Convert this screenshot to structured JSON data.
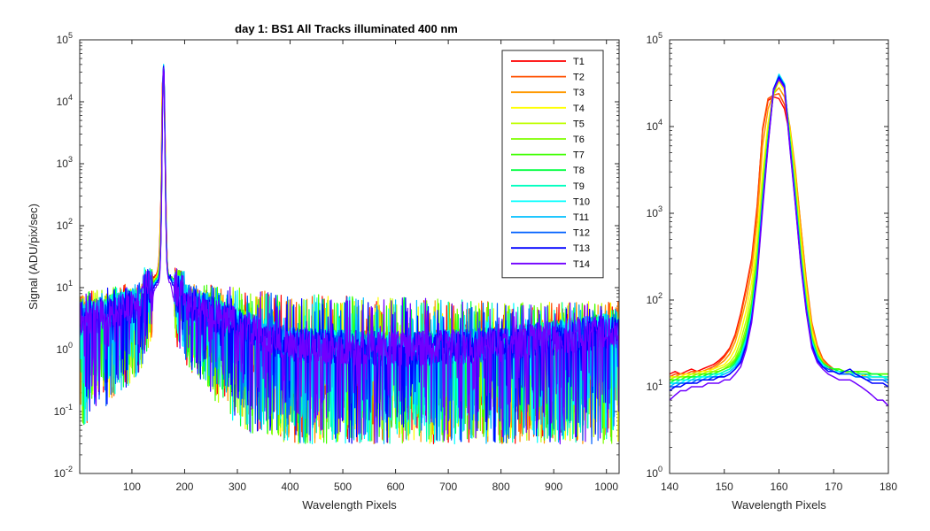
{
  "figure": {
    "title": "day 1: BS1   All Tracks illuminated   400 nm"
  },
  "chart_data": [
    {
      "type": "line",
      "title": "day 1: BS1   All Tracks illuminated   400 nm",
      "xlabel": "Wavelength Pixels",
      "ylabel": "Signal (ADU/pix/sec)",
      "xlim": [
        1,
        1024
      ],
      "ylim": [
        0.01,
        100000
      ],
      "yscale": "log",
      "x_ticks": [
        "100",
        "200",
        "300",
        "400",
        "500",
        "600",
        "700",
        "800",
        "900",
        "1000"
      ],
      "x_tick_values": [
        100,
        200,
        300,
        400,
        500,
        600,
        700,
        800,
        900,
        1000
      ],
      "y_ticks": [
        {
          "base": "10",
          "exp": "-2",
          "value": 0.01
        },
        {
          "base": "10",
          "exp": "-1",
          "value": 0.1
        },
        {
          "base": "10",
          "exp": "0",
          "value": 1
        },
        {
          "base": "10",
          "exp": "1",
          "value": 10
        },
        {
          "base": "10",
          "exp": "2",
          "value": 100
        },
        {
          "base": "10",
          "exp": "3",
          "value": 1000
        },
        {
          "base": "10",
          "exp": "4",
          "value": 10000
        },
        {
          "base": "10",
          "exp": "5",
          "value": 100000
        }
      ],
      "grid": false,
      "legend_position": "top-right",
      "peak": {
        "x": 160,
        "y_max_range": [
          22000,
          40000
        ]
      },
      "noise_profile": [
        {
          "x": 1,
          "median": 3.0,
          "min": 0.05,
          "max": 8
        },
        {
          "x": 100,
          "median": 5.0,
          "min": 0.3,
          "max": 12
        },
        {
          "x": 150,
          "median": 7.0,
          "min": 1.0,
          "max": 15
        },
        {
          "x": 200,
          "median": 6.0,
          "min": 0.6,
          "max": 12
        },
        {
          "x": 300,
          "median": 2.5,
          "min": 0.05,
          "max": 10
        },
        {
          "x": 400,
          "median": 1.2,
          "min": 0.03,
          "max": 8
        },
        {
          "x": 600,
          "median": 1.0,
          "min": 0.03,
          "max": 7
        },
        {
          "x": 800,
          "median": 1.2,
          "min": 0.03,
          "max": 6
        },
        {
          "x": 1000,
          "median": 2.0,
          "min": 0.03,
          "max": 6
        }
      ]
    },
    {
      "type": "line",
      "title": "",
      "xlabel": "Wavelength Pixels",
      "ylabel": "",
      "xlim": [
        140,
        180
      ],
      "ylim": [
        1,
        100000
      ],
      "yscale": "log",
      "x_ticks": [
        "140",
        "150",
        "160",
        "170",
        "180"
      ],
      "x_tick_values": [
        140,
        150,
        160,
        170,
        180
      ],
      "y_ticks": [
        {
          "base": "10",
          "exp": "0",
          "value": 1
        },
        {
          "base": "10",
          "exp": "1",
          "value": 10
        },
        {
          "base": "10",
          "exp": "2",
          "value": 100
        },
        {
          "base": "10",
          "exp": "3",
          "value": 1000
        },
        {
          "base": "10",
          "exp": "4",
          "value": 10000
        },
        {
          "base": "10",
          "exp": "5",
          "value": 100000
        }
      ],
      "grid": false,
      "x": [
        140,
        141,
        142,
        143,
        144,
        145,
        146,
        147,
        148,
        149,
        150,
        151,
        152,
        153,
        154,
        155,
        156,
        157,
        158,
        159,
        160,
        161,
        162,
        163,
        164,
        165,
        166,
        167,
        168,
        169,
        170,
        171,
        172,
        173,
        174,
        175,
        176,
        177,
        178,
        179,
        180
      ],
      "series": [
        {
          "name": "T1",
          "color": "#ff0000",
          "values": [
            14,
            15,
            14,
            15,
            16,
            15,
            16,
            17,
            18,
            20,
            23,
            28,
            40,
            70,
            140,
            300,
            1200,
            9000,
            20000,
            22000,
            21000,
            16000,
            8000,
            2500,
            600,
            150,
            50,
            28,
            20,
            17,
            15,
            15,
            14,
            14,
            14,
            13,
            14,
            13,
            13,
            13,
            12
          ]
        },
        {
          "name": "T2",
          "color": "#ff5000",
          "values": [
            13,
            14,
            14,
            14,
            15,
            15,
            15,
            16,
            17,
            19,
            22,
            27,
            38,
            65,
            130,
            280,
            1100,
            9500,
            21000,
            23000,
            24000,
            18000,
            9000,
            3000,
            700,
            170,
            55,
            30,
            21,
            18,
            16,
            15,
            15,
            14,
            14,
            14,
            14,
            13,
            13,
            13,
            12
          ]
        },
        {
          "name": "T3",
          "color": "#ff9900",
          "values": [
            13,
            13,
            14,
            14,
            14,
            15,
            15,
            16,
            16,
            18,
            20,
            24,
            33,
            55,
            100,
            220,
            800,
            6000,
            16000,
            24000,
            28000,
            22000,
            10000,
            3200,
            700,
            160,
            52,
            28,
            20,
            17,
            16,
            15,
            15,
            14,
            14,
            14,
            13,
            13,
            13,
            13,
            12
          ]
        },
        {
          "name": "T4",
          "color": "#ffff00",
          "values": [
            13,
            13,
            13,
            14,
            14,
            14,
            15,
            15,
            16,
            17,
            18,
            21,
            27,
            42,
            75,
            160,
            520,
            3000,
            11000,
            24000,
            33000,
            26000,
            9000,
            2500,
            500,
            130,
            45,
            26,
            19,
            17,
            16,
            15,
            15,
            14,
            14,
            14,
            13,
            13,
            13,
            13,
            13
          ]
        },
        {
          "name": "T5",
          "color": "#bfff00",
          "values": [
            12,
            13,
            13,
            13,
            14,
            14,
            14,
            15,
            15,
            16,
            17,
            19,
            23,
            34,
            58,
            120,
            380,
            2200,
            9000,
            23000,
            36000,
            28000,
            8000,
            2000,
            400,
            110,
            40,
            25,
            19,
            17,
            16,
            16,
            15,
            15,
            15,
            14,
            14,
            14,
            14,
            14,
            14
          ]
        },
        {
          "name": "T6",
          "color": "#7fff00",
          "values": [
            12,
            12,
            13,
            13,
            13,
            14,
            14,
            14,
            15,
            15,
            16,
            18,
            21,
            29,
            48,
            95,
            300,
            1800,
            8000,
            24000,
            37000,
            29000,
            7500,
            1800,
            350,
            95,
            38,
            24,
            19,
            17,
            16,
            16,
            15,
            15,
            15,
            14,
            14,
            14,
            14,
            14,
            14
          ]
        },
        {
          "name": "T7",
          "color": "#3fff00",
          "values": [
            12,
            12,
            12,
            13,
            13,
            13,
            14,
            14,
            14,
            15,
            16,
            17,
            20,
            26,
            42,
            85,
            270,
            1600,
            7500,
            25000,
            38000,
            30000,
            7000,
            1700,
            330,
            90,
            36,
            23,
            19,
            17,
            16,
            16,
            15,
            15,
            15,
            15,
            15,
            14,
            14,
            14,
            14
          ]
        },
        {
          "name": "T8",
          "color": "#00ff40",
          "values": [
            11,
            12,
            12,
            12,
            13,
            13,
            13,
            14,
            14,
            14,
            15,
            16,
            19,
            24,
            38,
            78,
            250,
            1500,
            7200,
            25000,
            39000,
            30000,
            6800,
            1600,
            320,
            88,
            35,
            23,
            18,
            17,
            16,
            15,
            15,
            15,
            14,
            14,
            14,
            14,
            14,
            13,
            13
          ]
        },
        {
          "name": "T9",
          "color": "#00ffbf",
          "values": [
            11,
            11,
            12,
            12,
            12,
            13,
            13,
            13,
            14,
            14,
            15,
            16,
            18,
            23,
            36,
            72,
            230,
            1400,
            7000,
            26000,
            40000,
            31000,
            6500,
            1500,
            300,
            85,
            34,
            22,
            18,
            16,
            15,
            15,
            14,
            14,
            14,
            14,
            14,
            13,
            13,
            13,
            13
          ]
        },
        {
          "name": "T10",
          "color": "#00ffff",
          "values": [
            11,
            11,
            11,
            12,
            12,
            12,
            13,
            13,
            13,
            14,
            14,
            15,
            17,
            22,
            34,
            68,
            220,
            1350,
            6800,
            26000,
            40000,
            31000,
            6300,
            1450,
            290,
            82,
            33,
            22,
            18,
            16,
            15,
            15,
            14,
            14,
            14,
            13,
            13,
            13,
            13,
            13,
            12
          ]
        },
        {
          "name": "T11",
          "color": "#00bfff",
          "values": [
            10,
            11,
            11,
            11,
            12,
            12,
            12,
            13,
            13,
            13,
            14,
            15,
            17,
            21,
            33,
            65,
            210,
            1300,
            6600,
            27000,
            39000,
            30000,
            6200,
            1400,
            280,
            80,
            32,
            21,
            17,
            16,
            15,
            14,
            14,
            14,
            13,
            13,
            13,
            12,
            12,
            12,
            12
          ]
        },
        {
          "name": "T12",
          "color": "#0060ff",
          "values": [
            10,
            10,
            11,
            11,
            11,
            12,
            12,
            12,
            13,
            13,
            13,
            14,
            16,
            20,
            31,
            62,
            200,
            1250,
            6400,
            27000,
            38000,
            30000,
            6000,
            1350,
            270,
            78,
            31,
            21,
            17,
            16,
            15,
            14,
            14,
            14,
            13,
            13,
            12,
            12,
            12,
            12,
            11
          ]
        },
        {
          "name": "T13",
          "color": "#0000ff",
          "values": [
            9,
            10,
            10,
            11,
            11,
            11,
            12,
            12,
            12,
            13,
            13,
            14,
            16,
            19,
            30,
            60,
            195,
            1200,
            6300,
            27000,
            37000,
            29000,
            5900,
            1300,
            260,
            75,
            30,
            20,
            17,
            15,
            15,
            14,
            15,
            16,
            14,
            13,
            12,
            11,
            11,
            11,
            10
          ]
        },
        {
          "name": "T14",
          "color": "#7000ff",
          "values": [
            7,
            8,
            9,
            9,
            10,
            10,
            10,
            11,
            11,
            11,
            12,
            12,
            14,
            17,
            27,
            55,
            180,
            1100,
            6000,
            26000,
            35000,
            28000,
            5600,
            1250,
            250,
            72,
            28,
            19,
            16,
            14,
            13,
            12,
            12,
            12,
            11,
            10,
            9,
            8,
            7,
            7,
            6
          ]
        }
      ]
    }
  ]
}
